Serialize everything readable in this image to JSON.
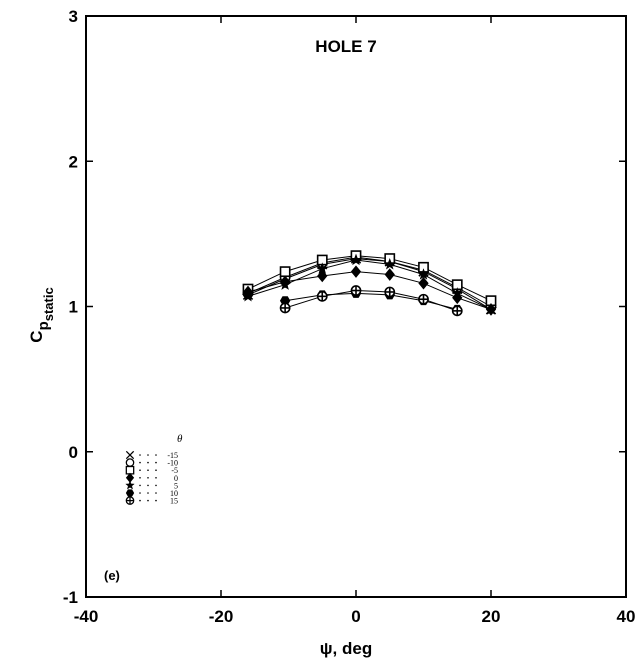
{
  "chart_data": {
    "type": "line",
    "title": "HOLE 7",
    "xlabel": "ψ, deg",
    "ylabel": "C",
    "ylabel_subscript": "p",
    "ylabel_subsubscript": "static",
    "panel_label": "(e)",
    "xlim": [
      -40,
      40
    ],
    "ylim": [
      -1,
      3
    ],
    "xticks": [
      -40,
      -20,
      0,
      20,
      40
    ],
    "yticks": [
      -1,
      0,
      1,
      2,
      3
    ],
    "xtick_labels": [
      "-40",
      "-20",
      "0",
      "20",
      "40"
    ],
    "ytick_labels": [
      "-1",
      "0",
      "1",
      "2",
      "3"
    ],
    "grid": false,
    "legend_title": "θ",
    "legend_placement": "bottom-left",
    "series": [
      {
        "name": "-15",
        "marker": "x",
        "x": [
          -16,
          -10.5,
          -5,
          0,
          5,
          10,
          15,
          20
        ],
        "y": [
          1.08,
          1.19,
          1.29,
          1.33,
          1.31,
          1.24,
          1.12,
          0.98
        ]
      },
      {
        "name": "-10",
        "marker": "circle",
        "x": [
          -16,
          -10.5,
          -5,
          0,
          5,
          10,
          15,
          20
        ],
        "y": [
          1.09,
          1.2,
          1.3,
          1.34,
          1.31,
          1.25,
          1.13,
          1.0
        ]
      },
      {
        "name": "-5",
        "marker": "square",
        "x": [
          -16,
          -10.5,
          -5,
          0,
          5,
          10,
          15,
          20
        ],
        "y": [
          1.12,
          1.24,
          1.32,
          1.35,
          1.33,
          1.27,
          1.15,
          1.04
        ]
      },
      {
        "name": "0",
        "marker": "diamond",
        "x": [
          -16,
          -10.5,
          -5,
          0,
          5,
          10,
          15,
          20
        ],
        "y": [
          1.1,
          1.17,
          1.21,
          1.24,
          1.22,
          1.16,
          1.06,
          0.98
        ]
      },
      {
        "name": "5",
        "marker": "star",
        "x": [
          -16,
          -10.5,
          -5,
          0,
          5,
          10,
          15,
          20
        ],
        "y": [
          1.07,
          1.15,
          1.26,
          1.32,
          1.29,
          1.22,
          1.09,
          0.98
        ]
      },
      {
        "name": "10",
        "marker": "hexagon",
        "x": [
          -10.5,
          -5,
          0,
          5,
          10,
          15
        ],
        "y": [
          1.04,
          1.08,
          1.09,
          1.08,
          1.04,
          0.98
        ]
      },
      {
        "name": "15",
        "marker": "circle-plus",
        "x": [
          -10.5,
          -5,
          0,
          5,
          10,
          15
        ],
        "y": [
          0.99,
          1.07,
          1.11,
          1.1,
          1.05,
          0.97
        ]
      }
    ]
  }
}
